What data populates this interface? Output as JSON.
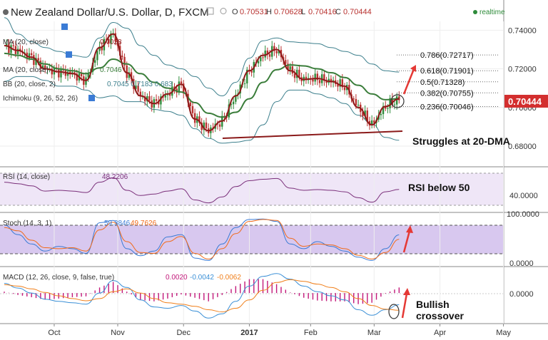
{
  "header": {
    "title": "New Zealand Dollar/U.S. Dollar, D, FXCM",
    "ohlc": [
      {
        "label": "O",
        "value": "0.70531"
      },
      {
        "label": "H",
        "value": "0.70628"
      },
      {
        "label": "L",
        "value": "0.70416"
      },
      {
        "label": "C",
        "value": "0.70444"
      }
    ],
    "realtime": "realtime"
  },
  "indicators": [
    {
      "label": "MA (20, close)",
      "value": "0.7028"
    },
    {
      "label": "MA (20, close)",
      "value": "0.7046"
    },
    {
      "label": "BB (20, close, 2)",
      "value": "0.7045  0.7183  0.683"
    },
    {
      "label": "Ichimoku (9, 26, 52, 26)",
      "value": ""
    }
  ],
  "colors": {
    "up": "#2e8b3a",
    "down": "#b8312f",
    "price_badge": "#d32f2f",
    "bb": "#3c7f8c",
    "ma20": "#3a7d3a",
    "ma_fast": "#8e1a1a",
    "rsi_line": "#7a2f7a",
    "rsi_band": "#efe6f7",
    "stoch_k": "#3a7bd5",
    "stoch_d": "#f06a1a",
    "stoch_band": "#d8c8ef",
    "macd_line": "#3a8fd6",
    "signal_line": "#f07f1a",
    "hist": "#c2187a",
    "annot_arrow": "#e53935",
    "trendline": "#8b1a1a"
  },
  "chart_data": {
    "type": "line",
    "title": "New Zealand Dollar/U.S. Dollar, D, FXCM",
    "x_ticks": [
      "Oct",
      "Nov",
      "Dec",
      "2017",
      "Feb",
      "Mar",
      "Apr",
      "May"
    ],
    "price_axis": {
      "labels": [
        "0.74000",
        "0.72000",
        "0.70000",
        "0.68000"
      ],
      "values": [
        0.74,
        0.72,
        0.7,
        0.68
      ],
      "ylim": [
        0.6715,
        0.7475
      ]
    },
    "last_price": "0.70444",
    "fib_levels": [
      {
        "label": "0.786(0.72717)",
        "value": 0.72717
      },
      {
        "label": "0.618(0.71901)",
        "value": 0.71901
      },
      {
        "label": "0.5(0.71328)",
        "value": 0.71328
      },
      {
        "label": "0.382(0.70755)",
        "value": 0.70755
      },
      {
        "label": "0.236(0.70046)",
        "value": 0.70046
      }
    ],
    "annotations": [
      "Struggles at 20-DMA",
      "RSI below 50",
      "Bullish crossover"
    ],
    "series": [
      {
        "name": "Close",
        "x": [
          0,
          6,
          12,
          18,
          24,
          30,
          36,
          42,
          48,
          54,
          60,
          66,
          72,
          78,
          84,
          90,
          96,
          102,
          108,
          114,
          120,
          126,
          132,
          138,
          144,
          150,
          156,
          162,
          168,
          174
        ],
        "values": [
          0.732,
          0.7295,
          0.726,
          0.72,
          0.7185,
          0.7175,
          0.714,
          0.731,
          0.738,
          0.718,
          0.706,
          0.702,
          0.707,
          0.712,
          0.694,
          0.688,
          0.693,
          0.706,
          0.719,
          0.727,
          0.73,
          0.719,
          0.7145,
          0.715,
          0.7135,
          0.711,
          0.7,
          0.691,
          0.7005,
          0.7044
        ]
      },
      {
        "name": "MA (20, close)",
        "x": [
          0,
          6,
          12,
          18,
          24,
          30,
          36,
          42,
          48,
          54,
          60,
          66,
          72,
          78,
          84,
          90,
          96,
          102,
          108,
          114,
          120,
          126,
          132,
          138,
          144,
          150,
          156,
          162,
          168,
          174
        ],
        "values": [
          0.728,
          0.727,
          0.725,
          0.7225,
          0.72,
          0.719,
          0.7175,
          0.7205,
          0.725,
          0.7225,
          0.7175,
          0.713,
          0.71,
          0.708,
          0.7025,
          0.697,
          0.695,
          0.6975,
          0.7045,
          0.713,
          0.7195,
          0.722,
          0.7215,
          0.72,
          0.718,
          0.7155,
          0.7115,
          0.707,
          0.704,
          0.7046
        ]
      },
      {
        "name": "BB upper",
        "x": [
          0,
          6,
          12,
          18,
          24,
          30,
          36,
          42,
          48,
          54,
          60,
          66,
          72,
          78,
          84,
          90,
          96,
          102,
          108,
          114,
          120,
          126,
          132,
          138,
          144,
          150,
          156,
          162,
          168,
          174
        ],
        "values": [
          0.7465,
          0.738,
          0.734,
          0.731,
          0.729,
          0.727,
          0.726,
          0.736,
          0.744,
          0.741,
          0.732,
          0.727,
          0.722,
          0.72,
          0.716,
          0.71,
          0.706,
          0.713,
          0.7255,
          0.7345,
          0.736,
          0.734,
          0.7335,
          0.733,
          0.731,
          0.729,
          0.727,
          0.7225,
          0.719,
          0.7183
        ]
      },
      {
        "name": "BB lower",
        "x": [
          0,
          6,
          12,
          18,
          24,
          30,
          36,
          42,
          48,
          54,
          60,
          66,
          72,
          78,
          84,
          90,
          96,
          102,
          108,
          114,
          120,
          126,
          132,
          138,
          144,
          150,
          156,
          162,
          168,
          174
        ],
        "values": [
          0.7135,
          0.716,
          0.716,
          0.714,
          0.711,
          0.711,
          0.709,
          0.705,
          0.706,
          0.703,
          0.703,
          0.699,
          0.698,
          0.696,
          0.689,
          0.684,
          0.6815,
          0.682,
          0.683,
          0.691,
          0.703,
          0.709,
          0.709,
          0.707,
          0.705,
          0.702,
          0.696,
          0.6915,
          0.6845,
          0.683
        ]
      },
      {
        "name": "RSI",
        "x": [
          0,
          6,
          12,
          18,
          24,
          30,
          36,
          42,
          48,
          54,
          60,
          66,
          72,
          78,
          84,
          90,
          96,
          102,
          108,
          114,
          120,
          126,
          132,
          138,
          144,
          150,
          156,
          162,
          168,
          174
        ],
        "values": [
          58,
          56,
          53,
          46,
          47,
          46,
          44,
          58,
          64,
          47,
          40,
          42,
          46,
          49,
          34,
          30,
          38,
          52,
          60,
          62,
          63,
          50,
          47,
          48,
          47,
          45,
          37,
          31,
          45,
          48.2206
        ]
      },
      {
        "name": "Stoch %K",
        "x": [
          0,
          6,
          12,
          18,
          24,
          30,
          36,
          42,
          48,
          54,
          60,
          66,
          72,
          78,
          84,
          90,
          96,
          102,
          108,
          114,
          120,
          126,
          132,
          138,
          144,
          150,
          156,
          162,
          168,
          174
        ],
        "values": [
          80,
          60,
          40,
          25,
          35,
          30,
          20,
          85,
          90,
          30,
          15,
          25,
          55,
          60,
          10,
          5,
          40,
          75,
          92,
          93,
          88,
          40,
          30,
          45,
          35,
          25,
          12,
          5,
          30,
          59.3846
        ]
      },
      {
        "name": "Stoch %D",
        "x": [
          0,
          6,
          12,
          18,
          24,
          30,
          36,
          42,
          48,
          54,
          60,
          66,
          72,
          78,
          84,
          90,
          96,
          102,
          108,
          114,
          120,
          126,
          132,
          138,
          144,
          150,
          156,
          162,
          168,
          174
        ],
        "values": [
          75,
          68,
          48,
          32,
          30,
          32,
          25,
          70,
          86,
          45,
          22,
          20,
          45,
          56,
          20,
          8,
          30,
          62,
          88,
          92,
          90,
          52,
          35,
          40,
          38,
          30,
          16,
          8,
          22,
          49.7626
        ]
      },
      {
        "name": "MACD",
        "x": [
          0,
          6,
          12,
          18,
          24,
          30,
          36,
          42,
          48,
          54,
          60,
          66,
          72,
          78,
          84,
          90,
          96,
          102,
          108,
          114,
          120,
          126,
          132,
          138,
          144,
          150,
          156,
          162,
          168,
          174
        ],
        "values": [
          0.0035,
          0.0018,
          0.0,
          -0.0022,
          -0.003,
          -0.0035,
          -0.004,
          0.0,
          0.0045,
          0.002,
          -0.0025,
          -0.005,
          -0.0055,
          -0.0045,
          -0.0065,
          -0.009,
          -0.0075,
          -0.003,
          0.0025,
          0.006,
          0.007,
          0.005,
          0.0025,
          0.0005,
          -0.001,
          -0.0025,
          -0.006,
          -0.008,
          -0.006,
          -0.0042
        ]
      },
      {
        "name": "Signal",
        "x": [
          0,
          6,
          12,
          18,
          24,
          30,
          36,
          42,
          48,
          54,
          60,
          66,
          72,
          78,
          84,
          90,
          96,
          102,
          108,
          114,
          120,
          126,
          132,
          138,
          144,
          150,
          156,
          162,
          168,
          174
        ],
        "values": [
          0.003,
          0.0025,
          0.0015,
          0.0002,
          -0.001,
          -0.002,
          -0.0028,
          -0.002,
          0.0005,
          0.0015,
          0.0,
          -0.002,
          -0.0035,
          -0.004,
          -0.0048,
          -0.006,
          -0.0068,
          -0.0055,
          -0.0025,
          0.001,
          0.0038,
          0.0048,
          0.0042,
          0.0032,
          0.002,
          0.0005,
          -0.002,
          -0.0045,
          -0.0058,
          -0.0062
        ]
      }
    ],
    "panes": [
      {
        "name": "RSI (14, close)",
        "value_label": "48.2206",
        "axis_labels": [
          "40.0000"
        ],
        "ylim": [
          20,
          75
        ]
      },
      {
        "name": "Stoch (14, 3, 1)",
        "value_labels": [
          "59.3846",
          "49.7626"
        ],
        "axis_labels": [
          "100.0000",
          "0.0000"
        ],
        "ylim": [
          -2,
          104
        ]
      },
      {
        "name": "MACD (12, 26, close, 9, false, true)",
        "value_labels": [
          "0.0020",
          "-0.0042",
          "-0.0062"
        ],
        "axis_labels": [
          "0.0000"
        ],
        "ylim": [
          -0.0105,
          0.0085
        ]
      }
    ]
  }
}
